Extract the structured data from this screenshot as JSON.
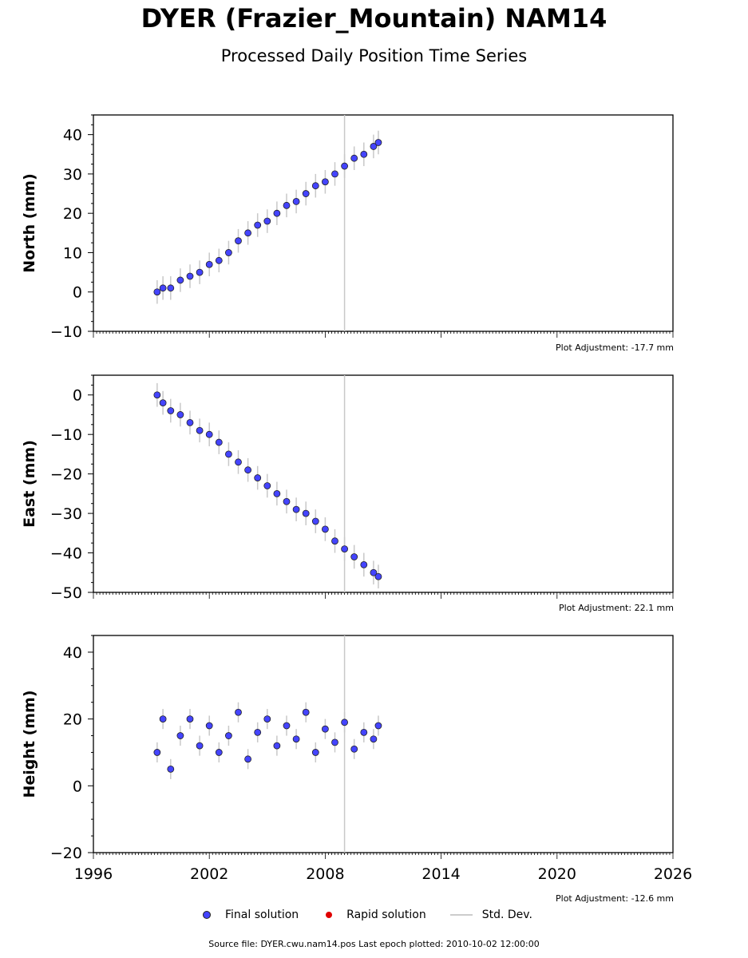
{
  "title": "DYER (Frazier_Mountain) NAM14",
  "subtitle": "Processed Daily Position Time Series",
  "legend": {
    "final": "Final solution",
    "rapid": "Rapid solution",
    "std": "Std. Dev."
  },
  "source_text": "Source file: DYER.cwu.nam14.pos  Last epoch plotted: 2010-10-02 12:00:00",
  "colors": {
    "final": "#4444ff",
    "rapid": "#e00000",
    "std": "#c8c8c8"
  },
  "panels": {
    "north": {
      "adjustment": "Plot Adjustment: -17.7 mm"
    },
    "east": {
      "adjustment": "Plot Adjustment: 22.1 mm"
    },
    "height": {
      "adjustment": "Plot Adjustment: -12.6 mm"
    }
  },
  "chart_data": [
    {
      "type": "scatter",
      "ylabel": "North (mm)",
      "xlim": [
        1996,
        2026
      ],
      "ylim": [
        -10,
        45
      ],
      "yticks": [
        -10,
        0,
        10,
        20,
        30,
        40
      ],
      "xticks": [],
      "vertical_lines": [
        2009.0
      ],
      "series": [
        {
          "name": "Final solution",
          "x": [
            1999.3,
            1999.6,
            2000.0,
            2000.5,
            2001.0,
            2001.5,
            2002.0,
            2002.5,
            2003.0,
            2003.5,
            2004.0,
            2004.5,
            2005.0,
            2005.5,
            2006.0,
            2006.5,
            2007.0,
            2007.5,
            2008.0,
            2008.5,
            2009.0,
            2009.5,
            2010.0,
            2010.5,
            2010.75
          ],
          "y": [
            0,
            1,
            1,
            3,
            4,
            5,
            7,
            8,
            10,
            13,
            15,
            17,
            18,
            20,
            22,
            23,
            25,
            27,
            28,
            30,
            32,
            34,
            35,
            37,
            38
          ]
        }
      ]
    },
    {
      "type": "scatter",
      "ylabel": "East (mm)",
      "xlim": [
        1996,
        2026
      ],
      "ylim": [
        -50,
        5
      ],
      "yticks": [
        -50,
        -40,
        -30,
        -20,
        -10,
        0
      ],
      "xticks": [],
      "vertical_lines": [
        2009.0
      ],
      "series": [
        {
          "name": "Final solution",
          "x": [
            1999.3,
            1999.6,
            2000.0,
            2000.5,
            2001.0,
            2001.5,
            2002.0,
            2002.5,
            2003.0,
            2003.5,
            2004.0,
            2004.5,
            2005.0,
            2005.5,
            2006.0,
            2006.5,
            2007.0,
            2007.5,
            2008.0,
            2008.5,
            2009.0,
            2009.5,
            2010.0,
            2010.5,
            2010.75
          ],
          "y": [
            0,
            -2,
            -4,
            -5,
            -7,
            -9,
            -10,
            -12,
            -15,
            -17,
            -19,
            -21,
            -23,
            -25,
            -27,
            -29,
            -30,
            -32,
            -34,
            -37,
            -39,
            -41,
            -43,
            -45,
            -46
          ]
        }
      ]
    },
    {
      "type": "scatter",
      "ylabel": "Height (mm)",
      "xlim": [
        1996,
        2026
      ],
      "ylim": [
        -20,
        45
      ],
      "yticks": [
        -20,
        0,
        20,
        40
      ],
      "xticks": [
        1996,
        2002,
        2008,
        2014,
        2020,
        2026
      ],
      "vertical_lines": [
        2009.0
      ],
      "series": [
        {
          "name": "Final solution",
          "x": [
            1999.3,
            1999.6,
            2000.0,
            2000.5,
            2001.0,
            2001.5,
            2002.0,
            2002.5,
            2003.0,
            2003.5,
            2004.0,
            2004.5,
            2005.0,
            2005.5,
            2006.0,
            2006.5,
            2007.0,
            2007.5,
            2008.0,
            2008.5,
            2009.0,
            2009.5,
            2010.0,
            2010.5,
            2010.75
          ],
          "y": [
            10,
            20,
            5,
            15,
            20,
            12,
            18,
            10,
            15,
            22,
            8,
            16,
            20,
            12,
            18,
            14,
            22,
            10,
            17,
            13,
            19,
            11,
            16,
            14,
            18
          ]
        }
      ]
    }
  ]
}
